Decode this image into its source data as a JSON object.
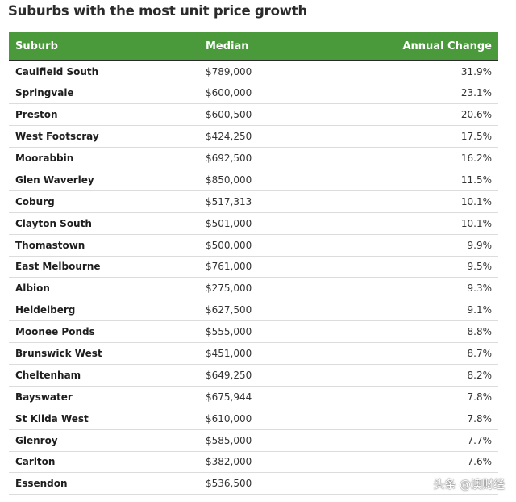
{
  "title": "Suburbs with the most unit price growth",
  "columns": {
    "suburb": "Suburb",
    "median": "Median",
    "change": "Annual Change"
  },
  "header_color": "#4a9a3c",
  "rows": [
    {
      "suburb": "Caulfield South",
      "median": "$789,000",
      "change": "31.9%"
    },
    {
      "suburb": "Springvale",
      "median": "$600,000",
      "change": "23.1%"
    },
    {
      "suburb": "Preston",
      "median": "$600,500",
      "change": "20.6%"
    },
    {
      "suburb": "West Footscray",
      "median": "$424,250",
      "change": "17.5%"
    },
    {
      "suburb": "Moorabbin",
      "median": "$692,500",
      "change": "16.2%"
    },
    {
      "suburb": "Glen Waverley",
      "median": "$850,000",
      "change": "11.5%"
    },
    {
      "suburb": "Coburg",
      "median": "$517,313",
      "change": "10.1%"
    },
    {
      "suburb": "Clayton South",
      "median": "$501,000",
      "change": "10.1%"
    },
    {
      "suburb": "Thomastown",
      "median": "$500,000",
      "change": "9.9%"
    },
    {
      "suburb": "East Melbourne",
      "median": "$761,000",
      "change": "9.5%"
    },
    {
      "suburb": "Albion",
      "median": "$275,000",
      "change": "9.3%"
    },
    {
      "suburb": "Heidelberg",
      "median": "$627,500",
      "change": "9.1%"
    },
    {
      "suburb": "Moonee Ponds",
      "median": "$555,000",
      "change": "8.8%"
    },
    {
      "suburb": "Brunswick West",
      "median": "$451,000",
      "change": "8.7%"
    },
    {
      "suburb": "Cheltenham",
      "median": "$649,250",
      "change": "8.2%"
    },
    {
      "suburb": "Bayswater",
      "median": "$675,944",
      "change": "7.8%"
    },
    {
      "suburb": "St Kilda West",
      "median": "$610,000",
      "change": "7.8%"
    },
    {
      "suburb": "Glenroy",
      "median": "$585,000",
      "change": "7.7%"
    },
    {
      "suburb": "Carlton",
      "median": "$382,000",
      "change": "7.6%"
    },
    {
      "suburb": "Essendon",
      "median": "$536,500",
      "change": ""
    }
  ],
  "watermark": "头条 @澳财经"
}
